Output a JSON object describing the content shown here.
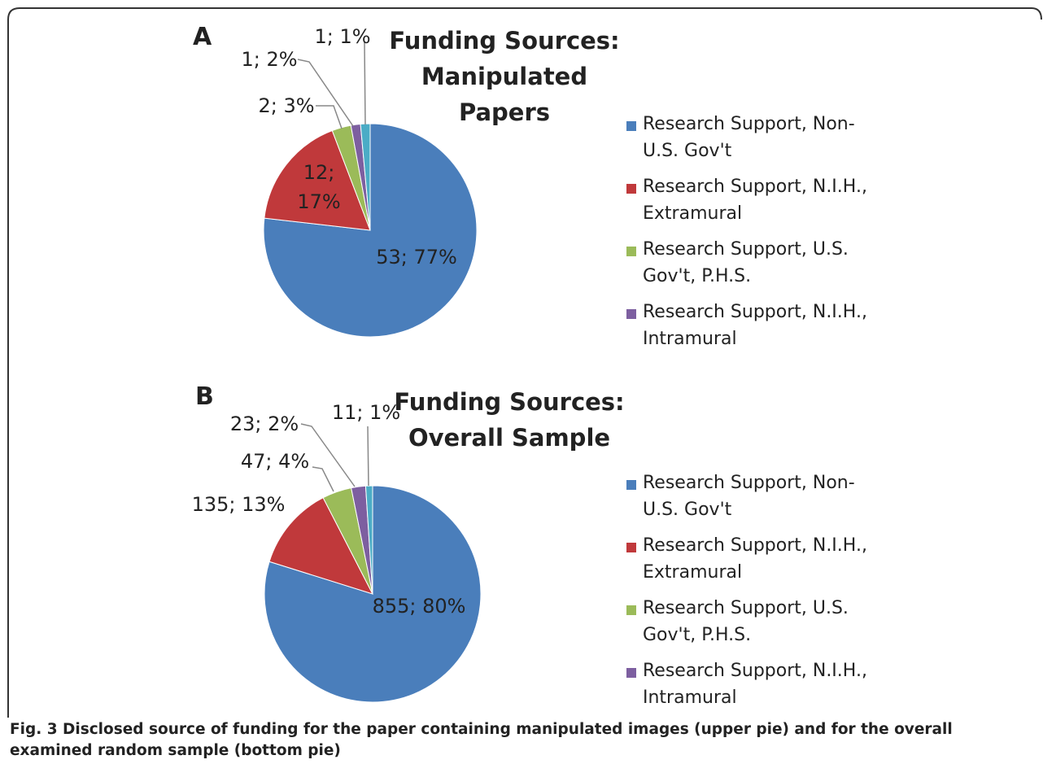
{
  "panels": [
    "A",
    "B"
  ],
  "chart_data": [
    {
      "type": "pie",
      "title": "Funding Sources: Manipulated Papers",
      "categories": [
        "Research Support, Non-U.S. Gov't",
        "Research Support, N.I.H., Extramural",
        "Research Support, U.S. Gov't, P.H.S.",
        "Research Support, N.I.H., Intramural",
        null
      ],
      "values": [
        53,
        12,
        2,
        1,
        1
      ],
      "value_labels": [
        "53; 77%",
        "12; 17%",
        "2; 3%",
        "1; 2%",
        "1; 1%"
      ],
      "colors": [
        "#4a7ebb",
        "#c0393b",
        "#9bbb59",
        "#7d5fa0",
        "#4bacc6"
      ]
    },
    {
      "type": "pie",
      "title": "Funding Sources: Overall Sample",
      "categories": [
        "Research Support, Non-U.S. Gov't",
        "Research Support, N.I.H., Extramural",
        "Research Support, U.S. Gov't, P.H.S.",
        "Research Support, N.I.H., Intramural",
        null
      ],
      "values": [
        855,
        135,
        47,
        23,
        11
      ],
      "value_labels": [
        "855; 80%",
        "135; 13%",
        "47; 4%",
        "23; 2%",
        "11; 1%"
      ],
      "colors": [
        "#4a7ebb",
        "#c0393b",
        "#9bbb59",
        "#7d5fa0",
        "#4bacc6"
      ]
    }
  ],
  "caption": "Fig. 3 Disclosed source of funding for the paper containing manipulated images (upper pie) and for the overall examined random sample (bottom pie)"
}
